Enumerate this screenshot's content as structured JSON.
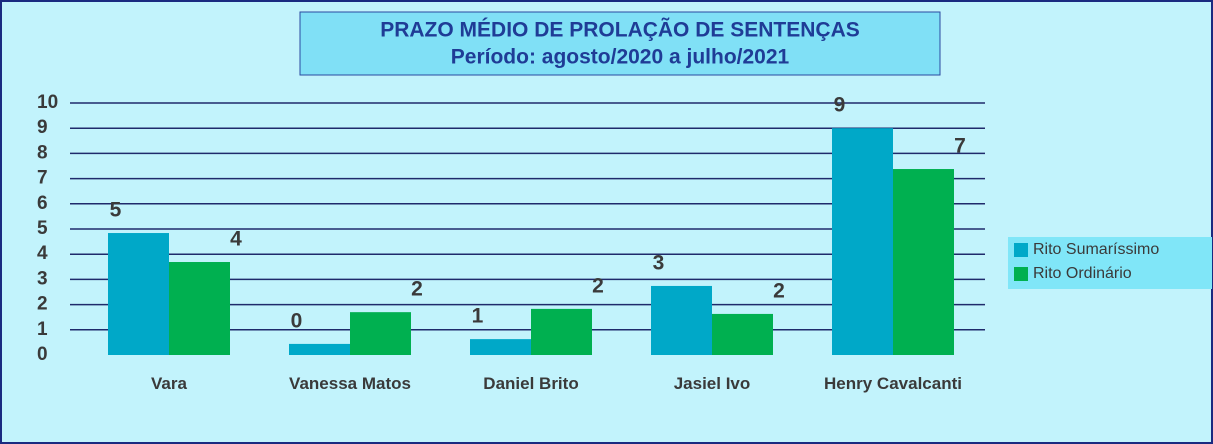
{
  "chart_data": {
    "type": "bar",
    "title": "PRAZO MÉDIO DE PROLAÇÃO DE SENTENÇAS",
    "subtitle": "Período: agosto/2020 a julho/2021",
    "categories": [
      "Vara",
      "Vanessa Matos",
      "Daniel Brito",
      "Jasiel Ivo",
      "Henry Cavalcanti"
    ],
    "series": [
      {
        "name": "Rito Sumaríssimo",
        "color": "#00a8c8",
        "values": [
          4.84,
          0.44,
          0.63,
          2.74,
          9.0
        ],
        "value_labels": [
          "5",
          "0",
          "1",
          "3",
          "9"
        ]
      },
      {
        "name": "Rito Ordinário",
        "color": "#00b050",
        "values": [
          3.69,
          1.7,
          1.83,
          1.63,
          7.38
        ],
        "value_labels": [
          "4",
          "2",
          "2",
          "2",
          "7"
        ]
      }
    ],
    "ylim": [
      0,
      10
    ],
    "yticks": [
      0,
      1,
      2,
      3,
      4,
      5,
      6,
      7,
      8,
      9,
      10
    ],
    "grid": true,
    "legend": "right"
  }
}
